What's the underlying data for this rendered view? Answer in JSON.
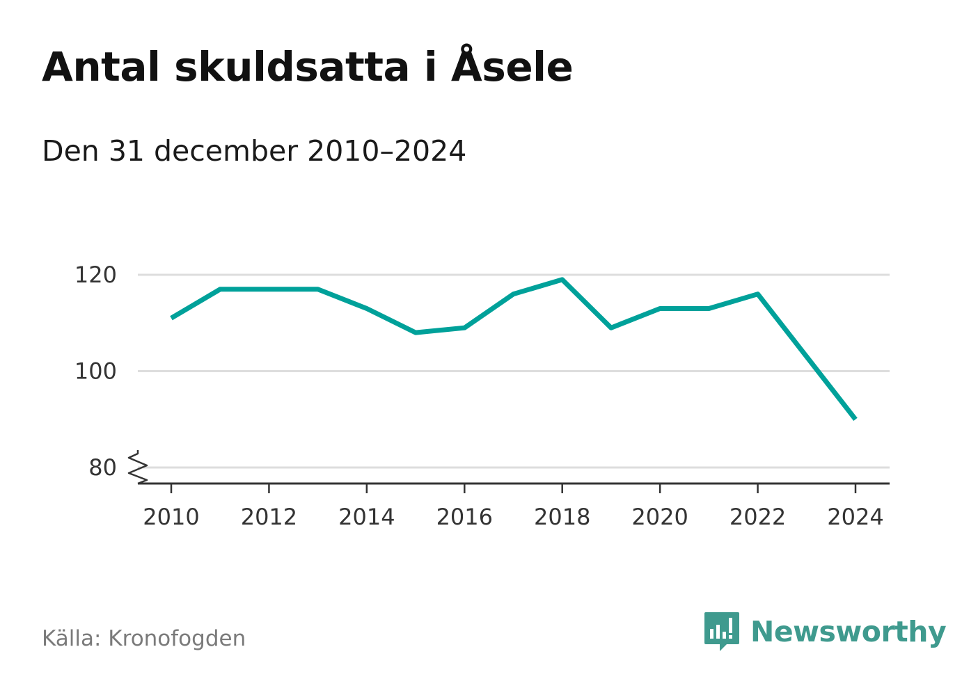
{
  "title": "Antal skuldsatta i Åsele",
  "subtitle": "Den 31 december 2010–2024",
  "source": "Källa: Kronofogden",
  "brand": "Newsworthy",
  "colors": {
    "line": "#00a19a",
    "grid": "#dddddd",
    "axis": "#333333",
    "brand": "#3f9a8e"
  },
  "chart_data": {
    "type": "line",
    "title": "Antal skuldsatta i Åsele",
    "subtitle": "Den 31 december 2010–2024",
    "x": [
      2010,
      2011,
      2012,
      2013,
      2014,
      2015,
      2016,
      2017,
      2018,
      2019,
      2020,
      2021,
      2022,
      2023,
      2024
    ],
    "values": [
      111,
      117,
      117,
      117,
      113,
      108,
      109,
      116,
      119,
      109,
      113,
      113,
      116,
      103,
      90
    ],
    "xticks": [
      "2010",
      "2012",
      "2014",
      "2016",
      "2018",
      "2020",
      "2022",
      "2024"
    ],
    "yticks": [
      "80",
      "100",
      "120"
    ],
    "ylim": [
      80,
      120
    ],
    "grid": true,
    "axis_break": true,
    "legend": "none"
  }
}
